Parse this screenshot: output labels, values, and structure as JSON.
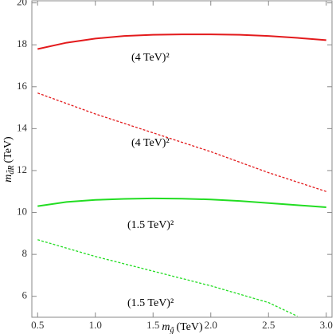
{
  "chart_data": {
    "type": "line",
    "x_label": {
      "symbol": "m",
      "subscript": "g̃",
      "unit": "(TeV)"
    },
    "y_label": {
      "symbol": "m",
      "subscript": "d̃R",
      "unit": "(TeV)"
    },
    "x": [
      0.5,
      0.75,
      1.0,
      1.25,
      1.5,
      1.75,
      2.0,
      2.25,
      2.5,
      2.75,
      3.0
    ],
    "series": [
      {
        "color": "#e31a1c",
        "dashed": false,
        "values": [
          17.8,
          18.1,
          18.3,
          18.42,
          18.48,
          18.5,
          18.5,
          18.48,
          18.42,
          18.33,
          18.22
        ]
      },
      {
        "color": "#e31a1c",
        "dashed": true,
        "values": [
          15.7,
          15.2,
          14.7,
          14.25,
          13.8,
          13.35,
          12.9,
          12.4,
          11.9,
          11.45,
          11.0
        ]
      },
      {
        "color": "#22dd22",
        "dashed": false,
        "values": [
          10.3,
          10.5,
          10.6,
          10.65,
          10.67,
          10.66,
          10.62,
          10.55,
          10.45,
          10.35,
          10.25
        ]
      },
      {
        "color": "#22dd22",
        "dashed": true,
        "values": [
          8.7,
          8.3,
          7.9,
          7.55,
          7.2,
          6.85,
          6.5,
          6.1,
          5.7,
          5.05,
          null
        ]
      }
    ],
    "annotations": [
      "(4 TeV)²",
      "(4 TeV)²",
      "(1.5 TeV)²",
      "(1.5 TeV)²"
    ],
    "xlim": [
      0.45,
      3.05
    ],
    "ylim": [
      5,
      20.1
    ],
    "xticks": [
      0.5,
      {
        "value": 1,
        "label": "1.0"
      },
      1.5,
      {
        "value": 2,
        "label": "2.0"
      },
      2.5,
      {
        "value": 3,
        "label": "3.0"
      }
    ],
    "yticks": [
      6,
      8,
      10,
      12,
      14,
      16,
      18,
      20
    ],
    "grid": false
  }
}
